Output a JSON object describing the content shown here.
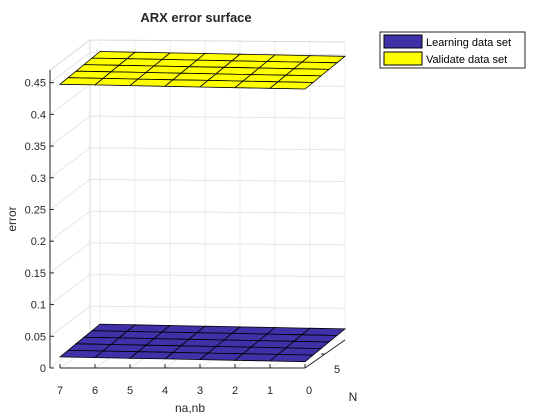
{
  "chart_data": {
    "type": "surface3d",
    "title": "ARX error surface",
    "xlabel": "na,nb",
    "ylabel": "N",
    "zlabel": "error",
    "x_ticks": [
      7,
      6,
      5,
      4,
      3,
      2,
      1,
      0
    ],
    "y_ticks": [
      5
    ],
    "z_ticks": [
      0,
      0.05,
      0.1,
      0.15,
      0.2,
      0.25,
      0.3,
      0.35,
      0.4,
      0.45
    ],
    "zlim": [
      0,
      0.47
    ],
    "grid": true,
    "legend_position": "outside-top-right",
    "series": [
      {
        "name": "Learning data set",
        "color": "#3f31a8",
        "z_range": [
          0.01,
          0.025
        ],
        "z_approx": 0.02
      },
      {
        "name": "Validate data set",
        "color": "#ffff00",
        "z_range": [
          0.44,
          0.455
        ],
        "z_approx": 0.45
      }
    ]
  }
}
